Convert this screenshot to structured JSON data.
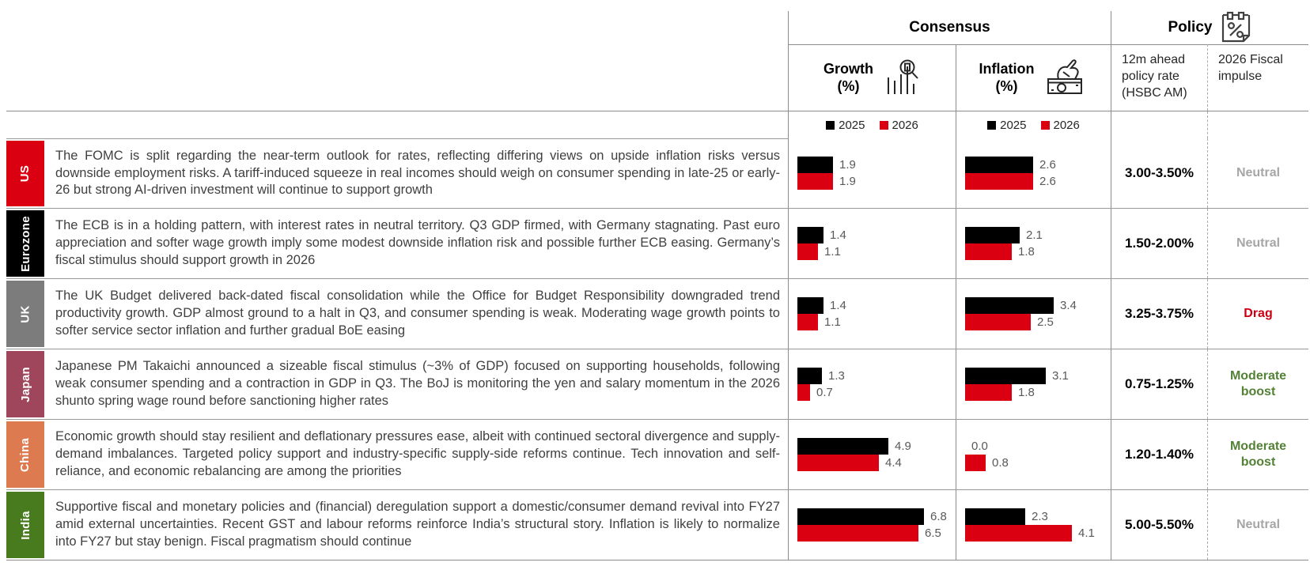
{
  "header": {
    "consensus_label": "Consensus",
    "policy_label": "Policy",
    "growth_col": {
      "title": "Growth",
      "unit": "(%)"
    },
    "inflation_col": {
      "title": "Inflation",
      "unit": "(%)"
    },
    "rate_col_label": "12m ahead policy rate (HSBC AM)",
    "fiscal_col_label": "2026 Fiscal impulse",
    "icons": {
      "growth": "bar-chart-magnifier-icon",
      "inflation": "hand-taking-money-icon",
      "policy": "calendar-percent-icon"
    }
  },
  "legend": {
    "series": [
      {
        "label": "2025",
        "color": "#000000"
      },
      {
        "label": "2026",
        "color": "#DB0011"
      }
    ]
  },
  "rows": [
    {
      "region": "US",
      "region_color": "#DB0011",
      "commentary": "The FOMC is split regarding the near-term outlook for rates, reflecting differing views on upside inflation risks versus downside employment risks. A tariff-induced squeeze in real incomes should weigh on consumer spending in late-25 or early-26 but strong AI-driven investment will continue to support growth",
      "growth": {
        "2025": "1.9",
        "2026": "1.9"
      },
      "inflation": {
        "2025": "2.6",
        "2026": "2.6"
      },
      "policy_rate": "3.00-3.50%",
      "fiscal_impulse": {
        "label": "Neutral",
        "color": "#A6A6A6"
      }
    },
    {
      "region": "Eurozone",
      "region_color": "#000000",
      "commentary": "The ECB is in a holding pattern, with interest rates in neutral territory. Q3 GDP firmed, with Germany stagnating. Past euro appreciation and softer wage growth imply some modest downside inflation risk and possible further ECB easing. Germany’s fiscal stimulus should support growth in 2026",
      "growth": {
        "2025": "1.4",
        "2026": "1.1"
      },
      "inflation": {
        "2025": "2.1",
        "2026": "1.8"
      },
      "policy_rate": "1.50-2.00%",
      "fiscal_impulse": {
        "label": "Neutral",
        "color": "#A6A6A6"
      }
    },
    {
      "region": "UK",
      "region_color": "#7C7C7C",
      "commentary": "The UK Budget delivered back-dated fiscal consolidation while the Office for Budget Responsibility downgraded trend productivity growth. GDP almost ground to a halt in Q3, and consumer spending is weak. Moderating wage growth points to softer service sector inflation and further gradual BoE easing",
      "growth": {
        "2025": "1.4",
        "2026": "1.1"
      },
      "inflation": {
        "2025": "3.4",
        "2026": "2.5"
      },
      "policy_rate": "3.25-3.75%",
      "fiscal_impulse": {
        "label": "Drag",
        "color": "#CC0011"
      }
    },
    {
      "region": "Japan",
      "region_color": "#A0465C",
      "commentary": "Japanese PM Takaichi announced a sizeable fiscal stimulus (~3% of GDP) focused on supporting households, following weak consumer spending and a contraction in GDP in Q3. The BoJ is monitoring the yen and salary momentum in the 2026 shunto spring wage round before sanctioning higher rates",
      "growth": {
        "2025": "1.3",
        "2026": "0.7"
      },
      "inflation": {
        "2025": "3.1",
        "2026": "1.8"
      },
      "policy_rate": "0.75-1.25%",
      "fiscal_impulse": {
        "label": "Moderate boost",
        "color": "#538135"
      }
    },
    {
      "region": "China",
      "region_color": "#DE7A50",
      "commentary": "Economic growth should stay resilient and deflationary pressures ease, albeit with continued sectoral divergence and supply-demand imbalances. Targeted policy support and industry-specific supply-side reforms continue. Tech innovation and self-reliance, and economic rebalancing are among the priorities",
      "growth": {
        "2025": "4.9",
        "2026": "4.4"
      },
      "inflation": {
        "2025": "0.0",
        "2026": "0.8"
      },
      "policy_rate": "1.20-1.40%",
      "fiscal_impulse": {
        "label": "Moderate boost",
        "color": "#538135"
      }
    },
    {
      "region": "India",
      "region_color": "#487A1E",
      "commentary": "Supportive fiscal and monetary policies and (financial) deregulation support a domestic/consumer demand revival into FY27 amid external uncertainties. Recent GST and labour reforms reinforce India’s structural story. Inflation is likely to normalize into FY27 but stay benign. Fiscal pragmatism should continue",
      "growth": {
        "2025": "6.8",
        "2026": "6.5"
      },
      "inflation": {
        "2025": "2.3",
        "2026": "4.1"
      },
      "policy_rate": "5.00-5.50%",
      "fiscal_impulse": {
        "label": "Neutral",
        "color": "#A6A6A6"
      }
    }
  ],
  "chart_data": [
    {
      "type": "bar",
      "orientation": "horizontal",
      "title": "Growth (%) — Consensus",
      "categories": [
        "US",
        "Eurozone",
        "UK",
        "Japan",
        "China",
        "India"
      ],
      "series": [
        {
          "name": "2025",
          "color": "#000000",
          "values": [
            1.9,
            1.4,
            1.4,
            1.3,
            4.9,
            6.8
          ]
        },
        {
          "name": "2026",
          "color": "#DB0011",
          "values": [
            1.9,
            1.1,
            1.1,
            0.7,
            4.4,
            6.5
          ]
        }
      ],
      "xlim": [
        0,
        8.5
      ],
      "grid": false,
      "legend_position": "top",
      "value_labels": true
    },
    {
      "type": "bar",
      "orientation": "horizontal",
      "title": "Inflation (%) — Consensus",
      "categories": [
        "US",
        "Eurozone",
        "UK",
        "Japan",
        "China",
        "India"
      ],
      "series": [
        {
          "name": "2025",
          "color": "#000000",
          "values": [
            2.6,
            2.1,
            3.4,
            3.1,
            0.0,
            2.3
          ]
        },
        {
          "name": "2026",
          "color": "#DB0011",
          "values": [
            2.6,
            1.8,
            2.5,
            1.8,
            0.8,
            4.1
          ]
        }
      ],
      "xlim": [
        0,
        5.5
      ],
      "grid": false,
      "legend_position": "top",
      "value_labels": true
    }
  ]
}
